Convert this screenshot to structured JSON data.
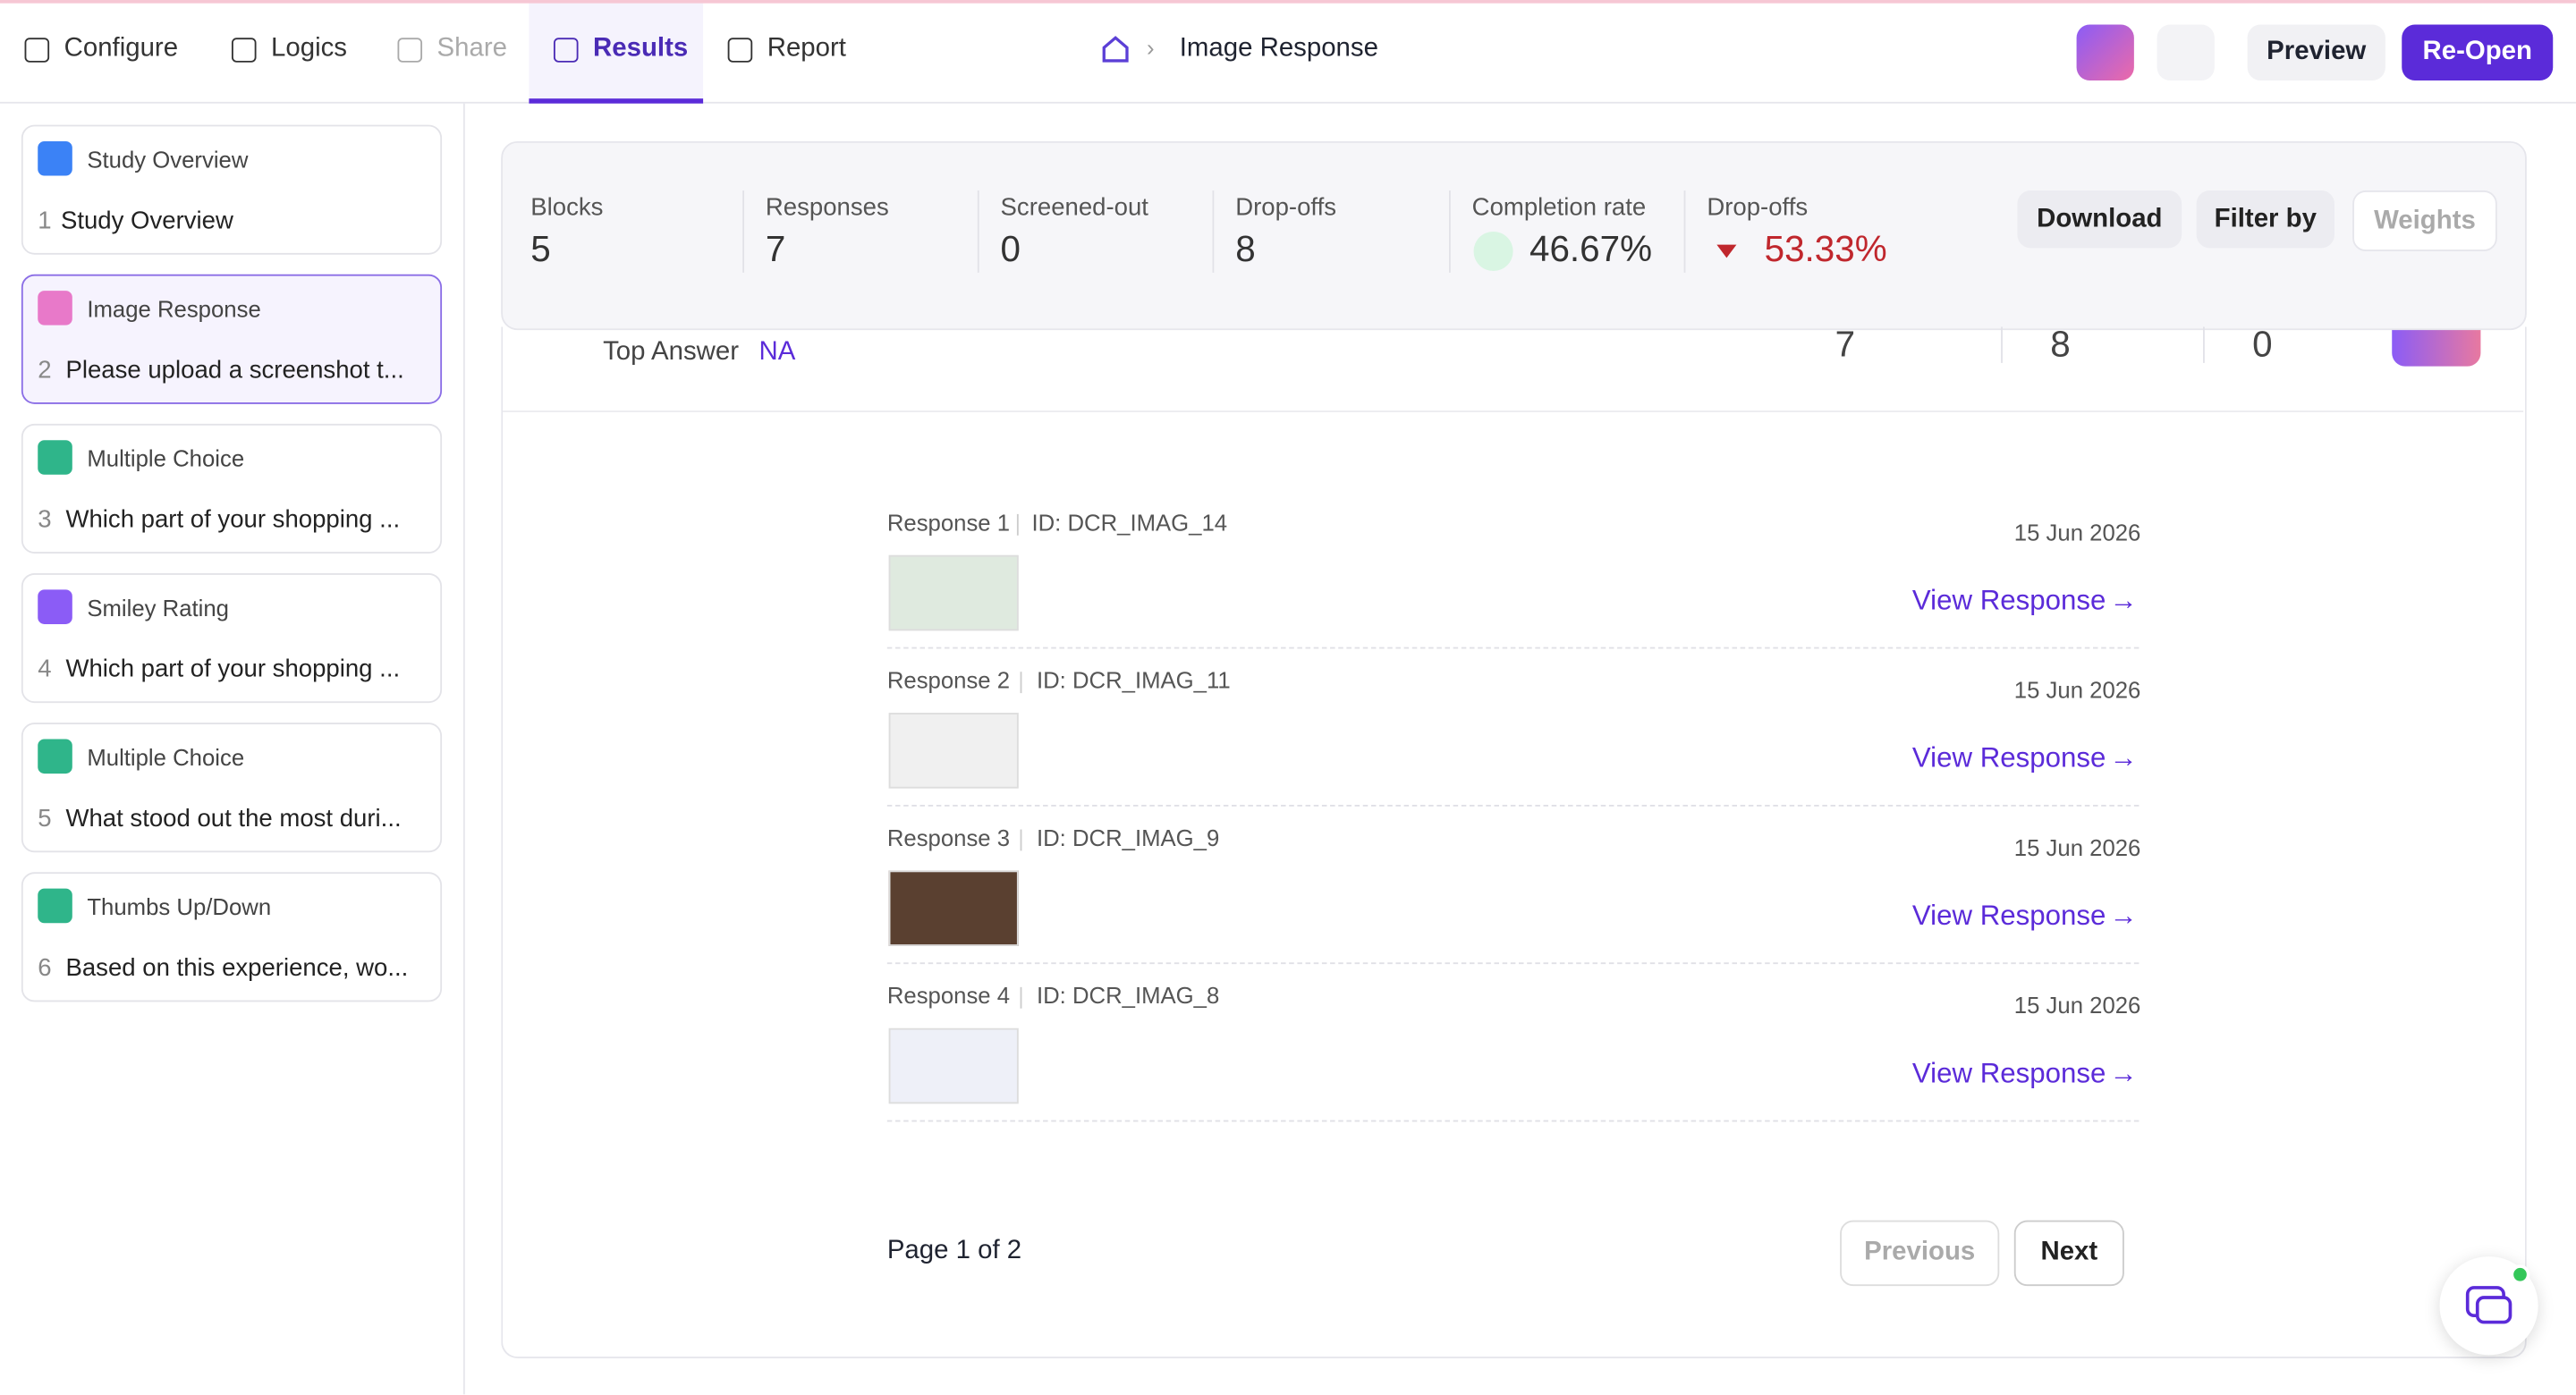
{
  "nav": {
    "tabs": [
      "Configure",
      "Logics",
      "Share",
      "Results",
      "Report"
    ],
    "breadcrumb": "Image Response",
    "buttons": [
      "Preview",
      "Re-Open"
    ]
  },
  "sidebar": [
    {
      "type": "Study Overview",
      "number": "1",
      "text": "Study Overview"
    },
    {
      "type": "Image Response",
      "number": "2",
      "text": "Please upload a screenshot t..."
    },
    {
      "type": "Multiple Choice",
      "number": "3",
      "text": "Which part of your shopping ..."
    },
    {
      "type": "Smiley Rating",
      "number": "4",
      "text": "Which part of your shopping ..."
    },
    {
      "type": "Multiple Choice",
      "number": "5",
      "text": "What stood out the most duri..."
    },
    {
      "type": "Thumbs Up/Down",
      "number": "6",
      "text": "Based on this experience, wo..."
    }
  ],
  "stats": [
    {
      "label": "Blocks",
      "value": "5"
    },
    {
      "label": "Responses",
      "value": "7"
    },
    {
      "label": "Screened-out",
      "value": "0"
    },
    {
      "label": "Drop-offs",
      "value": "8"
    },
    {
      "label": "Completion rate",
      "value": "46.67%"
    },
    {
      "label": "Drop-offs",
      "value": "53.33%"
    }
  ],
  "actions": [
    "Download",
    "Filter by",
    "Weights"
  ],
  "top_answer": {
    "label": "Top Answer",
    "value": "NA",
    "counts": [
      "7",
      "8",
      "0"
    ]
  },
  "responses": [
    {
      "label": "Response 1",
      "id": "ID: DCR_IMAG_14",
      "date": "15 Jun 2026",
      "link": "View Response"
    },
    {
      "label": "Response 2",
      "id": "ID: DCR_IMAG_11",
      "date": "15 Jun 2026",
      "link": "View Response"
    },
    {
      "label": "Response 3",
      "id": "ID: DCR_IMAG_9",
      "date": "15 Jun 2026",
      "link": "View Response"
    },
    {
      "label": "Response 4",
      "id": "ID: DCR_IMAG_8",
      "date": "15 Jun 2026",
      "link": "View Response"
    }
  ],
  "pagination": {
    "page": "Page 1 of 2",
    "previous": "Previous",
    "next": "Next"
  }
}
